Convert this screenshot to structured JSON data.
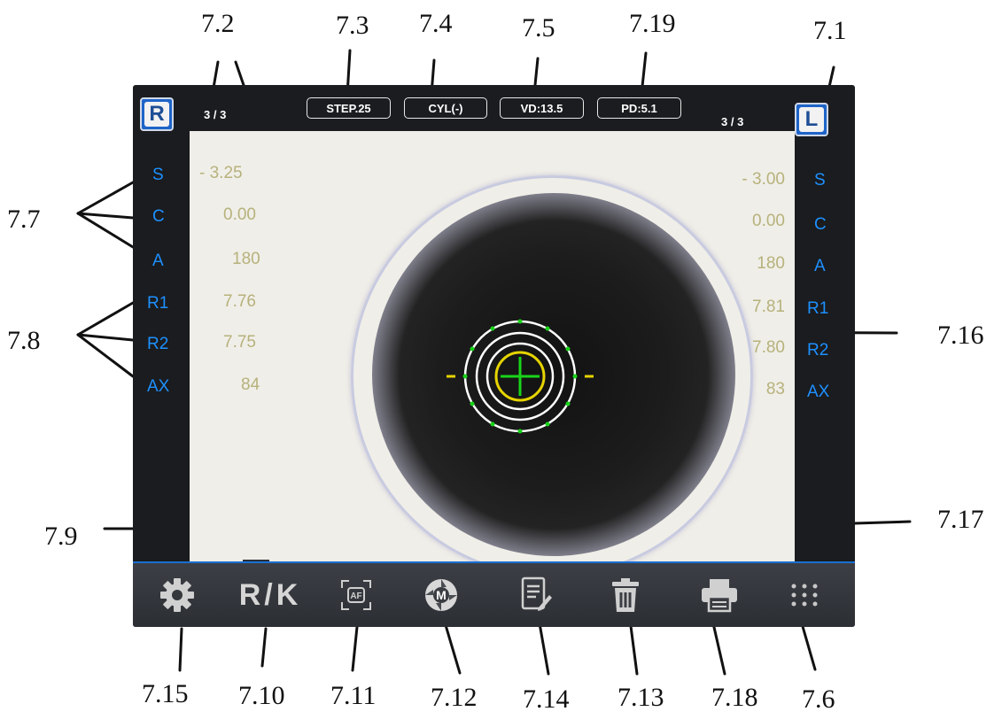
{
  "callouts": {
    "c7_1": "7.1",
    "c7_2": "7.2",
    "c7_3": "7.3",
    "c7_4": "7.4",
    "c7_5": "7.5",
    "c7_6": "7.6",
    "c7_7": "7.7",
    "c7_8": "7.8",
    "c7_9": "7.9",
    "c7_10": "7.10",
    "c7_11": "7.11",
    "c7_12": "7.12",
    "c7_13": "7.13",
    "c7_14": "7.14",
    "c7_15": "7.15",
    "c7_16": "7.16",
    "c7_17": "7.17",
    "c7_18": "7.18",
    "c7_19": "7.19"
  },
  "topbar": {
    "right_eye_label": "R",
    "left_eye_label": "L",
    "right_count": "3 / 3",
    "left_count": "3 / 3",
    "step": "STEP.25",
    "cyl": "CYL(-)",
    "vd": "VD:13.5",
    "pd": "PD:5.1"
  },
  "right_eye": {
    "labels": [
      "S",
      "C",
      "A",
      "R1",
      "R2",
      "AX"
    ],
    "values": [
      "- 3.25",
      "0.00",
      "180",
      "7.76",
      "7.75",
      "84"
    ]
  },
  "left_eye": {
    "labels": [
      "S",
      "C",
      "A",
      "R1",
      "R2",
      "AX"
    ],
    "values": [
      "- 3.00",
      "0.00",
      "180",
      "7.81",
      "7.80",
      "83"
    ]
  },
  "toolbar": {
    "items": [
      {
        "icon": "gear-icon"
      },
      {
        "label": "R/K"
      },
      {
        "icon": "autofocus-icon",
        "label": "AF"
      },
      {
        "icon": "manual-mode-icon",
        "label": "M"
      },
      {
        "icon": "notes-icon"
      },
      {
        "icon": "trash-icon"
      },
      {
        "icon": "printer-icon"
      },
      {
        "icon": "grid-menu-icon"
      }
    ]
  },
  "colors": {
    "accent_blue": "#1e90ff",
    "value_olive": "#b6b27c",
    "target_yellow": "#e6d400",
    "target_green": "#19d419"
  }
}
